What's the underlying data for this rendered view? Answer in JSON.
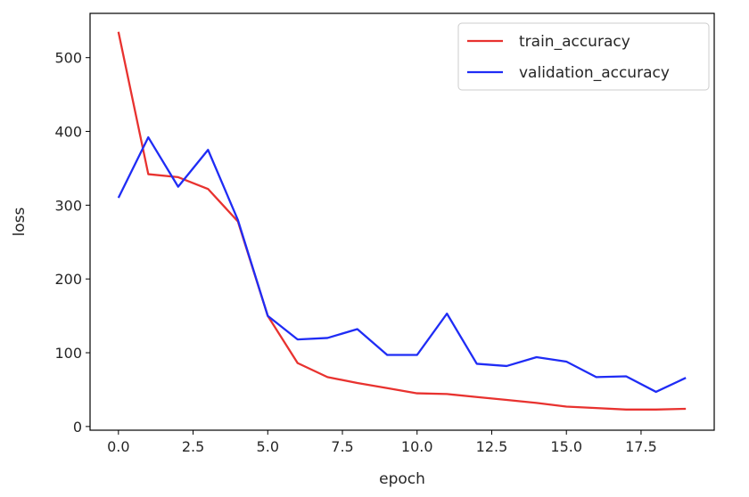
{
  "chart_data": {
    "type": "line",
    "title": "",
    "xlabel": "epoch",
    "ylabel": "loss",
    "xlim": [
      -0.95,
      19.95
    ],
    "ylim": [
      -5,
      560
    ],
    "x_ticks": [
      0,
      2.5,
      5,
      7.5,
      10,
      12.5,
      15,
      17.5
    ],
    "x_tick_labels": [
      "0.0",
      "2.5",
      "5.0",
      "7.5",
      "10.0",
      "12.5",
      "15.0",
      "17.5"
    ],
    "y_ticks": [
      0,
      100,
      200,
      300,
      400,
      500
    ],
    "y_tick_labels": [
      "0",
      "100",
      "200",
      "300",
      "400",
      "500"
    ],
    "grid": false,
    "legend_position": "top-right",
    "x": [
      0,
      1,
      2,
      3,
      4,
      5,
      6,
      7,
      8,
      9,
      10,
      11,
      12,
      13,
      14,
      15,
      16,
      17,
      18,
      19
    ],
    "series": [
      {
        "name": "train_accuracy",
        "color": "#e8322f",
        "values": [
          535,
          342,
          338,
          322,
          278,
          150,
          86,
          67,
          59,
          52,
          45,
          44,
          40,
          36,
          32,
          27,
          25,
          23,
          23,
          24
        ]
      },
      {
        "name": "validation_accuracy",
        "color": "#1f2cf5",
        "values": [
          310,
          392,
          325,
          375,
          280,
          150,
          118,
          120,
          132,
          97,
          97,
          153,
          85,
          82,
          94,
          88,
          67,
          68,
          47,
          66
        ]
      }
    ]
  }
}
